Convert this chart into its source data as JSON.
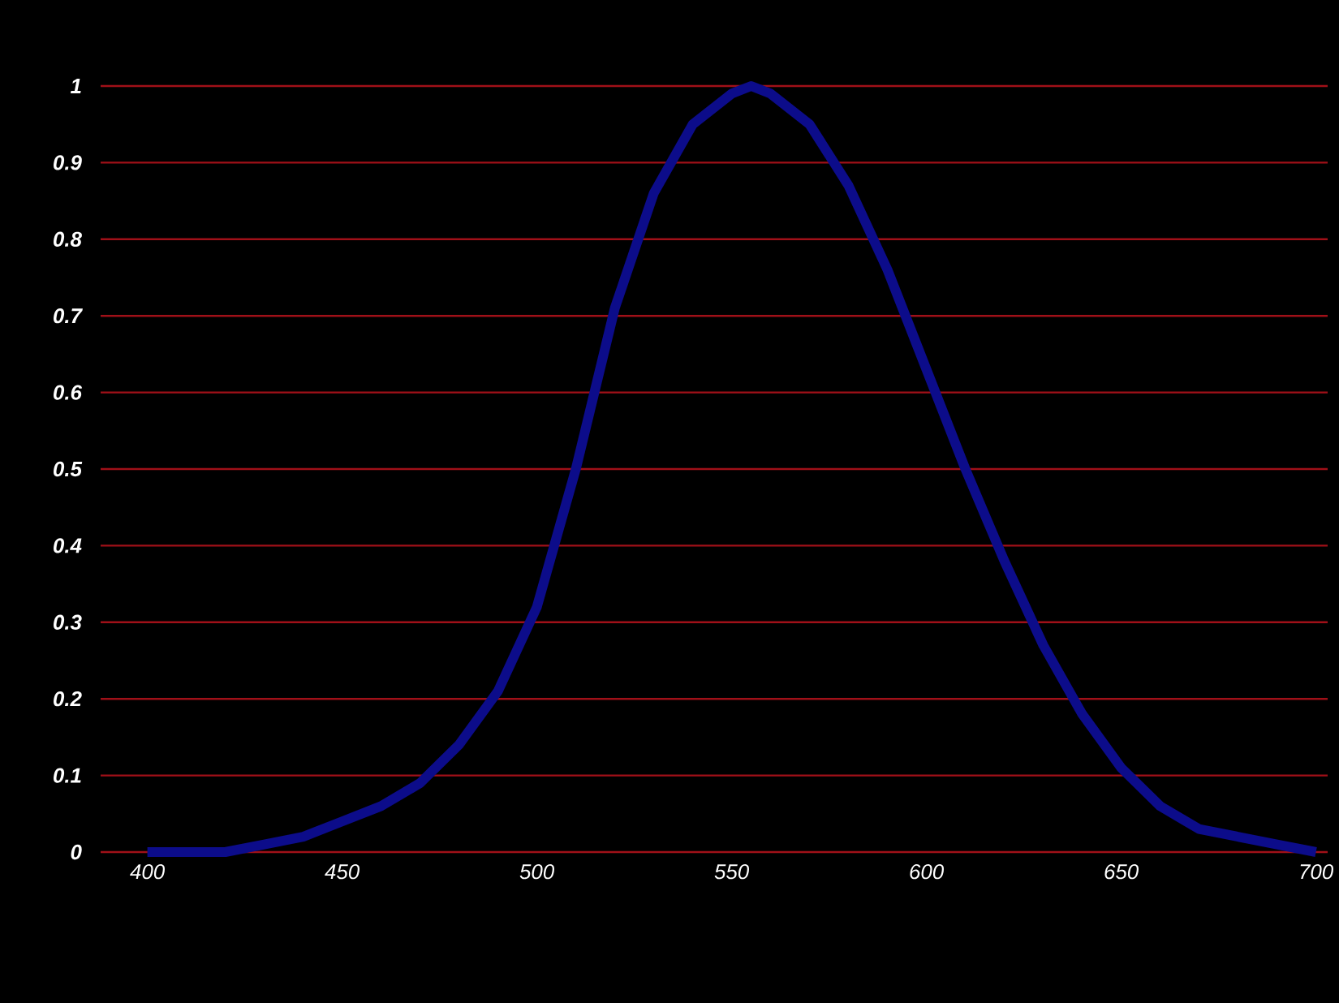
{
  "chart_data": {
    "type": "line",
    "x": [
      400,
      410,
      420,
      430,
      440,
      450,
      460,
      470,
      480,
      490,
      500,
      510,
      520,
      530,
      540,
      550,
      555,
      560,
      570,
      580,
      590,
      600,
      610,
      620,
      630,
      640,
      650,
      660,
      670,
      680,
      690,
      700
    ],
    "series": [
      {
        "color": "#0c0c8a",
        "values": [
          0.0,
          0.0,
          0.0,
          0.01,
          0.02,
          0.04,
          0.06,
          0.09,
          0.14,
          0.21,
          0.32,
          0.5,
          0.71,
          0.86,
          0.95,
          0.99,
          1.0,
          0.99,
          0.95,
          0.87,
          0.76,
          0.63,
          0.5,
          0.38,
          0.27,
          0.18,
          0.11,
          0.06,
          0.03,
          0.02,
          0.01,
          0.0
        ]
      }
    ],
    "xlim": [
      388,
      703
    ],
    "ylim": [
      0,
      1
    ],
    "xticks": [
      400,
      450,
      500,
      550,
      600,
      650,
      700
    ],
    "yticks": [
      0,
      0.1,
      0.2,
      0.3,
      0.4,
      0.5,
      0.6,
      0.7,
      0.8,
      0.9,
      1
    ],
    "grid": "y",
    "marker": "none",
    "line_style": "solid"
  }
}
